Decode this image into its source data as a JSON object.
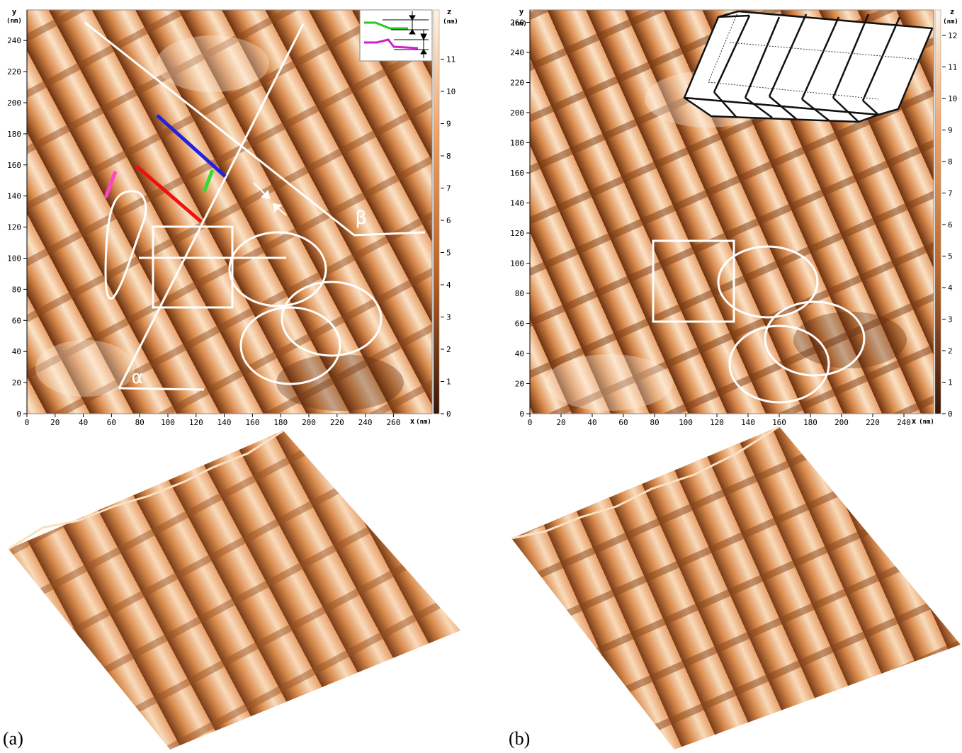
{
  "panels": [
    {
      "id": "a",
      "label": "(a)",
      "y_axis": {
        "title": "y",
        "unit": "(nm)",
        "ticks": [
          "0",
          "20",
          "40",
          "60",
          "80",
          "100",
          "120",
          "140",
          "160",
          "180",
          "200",
          "220",
          "240"
        ]
      },
      "x_axis": {
        "title": "x",
        "unit": "(nm)",
        "ticks": [
          "0",
          "20",
          "40",
          "60",
          "80",
          "100",
          "120",
          "140",
          "160",
          "180",
          "200",
          "220",
          "240",
          "260"
        ]
      },
      "z_scale": {
        "title": "z",
        "unit": "(nm)",
        "ticks": [
          "0",
          "1",
          "2",
          "3",
          "4",
          "5",
          "6",
          "7",
          "8",
          "9",
          "10",
          "11"
        ]
      },
      "annotations": {
        "alpha": "α",
        "beta": "β"
      }
    },
    {
      "id": "b",
      "label": "(b)",
      "y_axis": {
        "title": "y",
        "unit": "(nm)",
        "ticks": [
          "0",
          "20",
          "40",
          "60",
          "80",
          "100",
          "120",
          "140",
          "160",
          "180",
          "200",
          "220",
          "240",
          "260"
        ]
      },
      "x_axis": {
        "title": "x",
        "unit": "(nm)",
        "ticks": [
          "0",
          "20",
          "40",
          "60",
          "80",
          "100",
          "120",
          "140",
          "160",
          "180",
          "200",
          "220",
          "240"
        ]
      },
      "z_scale": {
        "title": "z",
        "unit": "(nm)",
        "ticks": [
          "0",
          "1",
          "2",
          "3",
          "4",
          "5",
          "6",
          "7",
          "8",
          "9",
          "10",
          "11",
          "12"
        ]
      }
    }
  ],
  "colors": {
    "afm_light": "#fbe6cf",
    "afm_mid": "#df8f50",
    "afm_dark": "#5a2a10",
    "profile_green": "#22cc22",
    "profile_magenta": "#cc22cc",
    "marker_blue": "#2222dd",
    "marker_red": "#ee1111",
    "marker_green": "#33dd33",
    "marker_pink": "#ff44cc",
    "annotation_white": "#ffffff"
  }
}
